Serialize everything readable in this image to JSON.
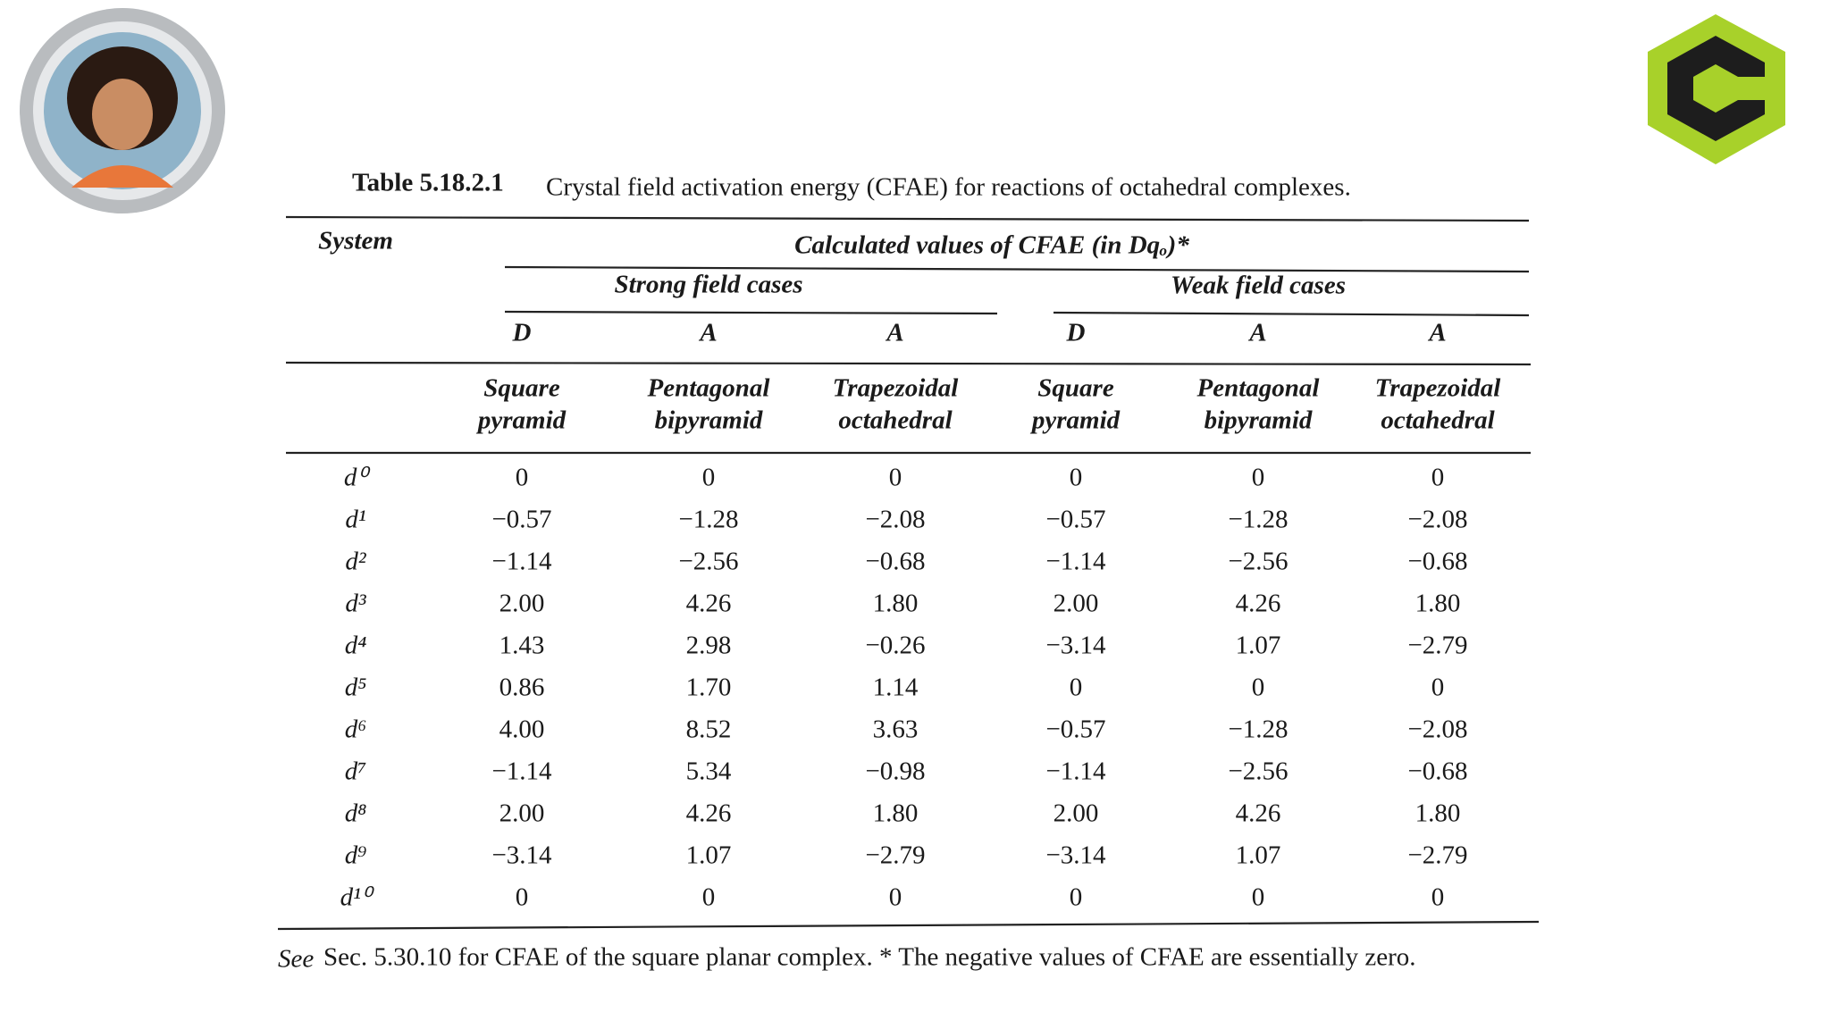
{
  "header": {
    "table_number": "Table 5.18.2.1",
    "caption": "Crystal field activation energy (CFAE) for reactions of octahedral complexes."
  },
  "table": {
    "system_label": "System",
    "group_title": "Calculated values of CFAE (in Dqₒ)*",
    "field_groups": [
      "Strong field cases",
      "Weak field cases"
    ],
    "mechanisms": [
      "D",
      "A",
      "A",
      "D",
      "A",
      "A"
    ],
    "geometries": [
      [
        "Square",
        "pyramid"
      ],
      [
        "Pentagonal",
        "bipyramid"
      ],
      [
        "Trapezoidal",
        "octahedral"
      ],
      [
        "Square",
        "pyramid"
      ],
      [
        "Pentagonal",
        "bipyramid"
      ],
      [
        "Trapezoidal",
        "octahedral"
      ]
    ],
    "rows": [
      [
        "d⁰",
        "0",
        "0",
        "0",
        "0",
        "0",
        "0"
      ],
      [
        "d¹",
        "−0.57",
        "−1.28",
        "−2.08",
        "−0.57",
        "−1.28",
        "−2.08"
      ],
      [
        "d²",
        "−1.14",
        "−2.56",
        "−0.68",
        "−1.14",
        "−2.56",
        "−0.68"
      ],
      [
        "d³",
        "2.00",
        "4.26",
        "1.80",
        "2.00",
        "4.26",
        "1.80"
      ],
      [
        "d⁴",
        "1.43",
        "2.98",
        "−0.26",
        "−3.14",
        "1.07",
        "−2.79"
      ],
      [
        "d⁵",
        "0.86",
        "1.70",
        "1.14",
        "0",
        "0",
        "0"
      ],
      [
        "d⁶",
        "4.00",
        "8.52",
        "3.63",
        "−0.57",
        "−1.28",
        "−2.08"
      ],
      [
        "d⁷",
        "−1.14",
        "5.34",
        "−0.98",
        "−1.14",
        "−2.56",
        "−0.68"
      ],
      [
        "d⁸",
        "2.00",
        "4.26",
        "1.80",
        "2.00",
        "4.26",
        "1.80"
      ],
      [
        "d⁹",
        "−3.14",
        "1.07",
        "−2.79",
        "−3.14",
        "1.07",
        "−2.79"
      ],
      [
        "d¹⁰",
        "0",
        "0",
        "0",
        "0",
        "0",
        "0"
      ]
    ]
  },
  "footnote": {
    "see": "See",
    "text": "Sec. 5.30.10 for CFAE of the square planar complex. * The negative values of CFAE are essentially zero."
  }
}
